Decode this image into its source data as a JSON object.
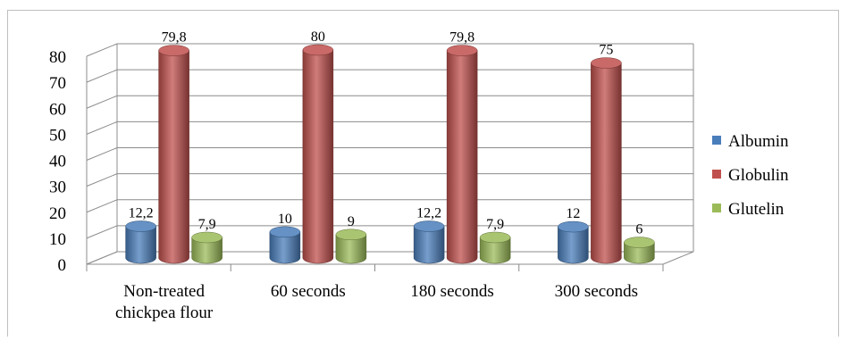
{
  "chart_data": {
    "type": "bar",
    "categories": [
      [
        "Non-treated",
        "chickpea flour"
      ],
      [
        "60 seconds"
      ],
      [
        "180 seconds"
      ],
      [
        "300 seconds"
      ]
    ],
    "series": [
      {
        "name": "Albumin",
        "color": "#4a7ebb",
        "values": [
          12.2,
          10,
          12.2,
          12
        ],
        "labels": [
          "12,2",
          "10",
          "12,2",
          "12"
        ]
      },
      {
        "name": "Globulin",
        "color": "#c0504d",
        "values": [
          79.8,
          80,
          79.8,
          75
        ],
        "labels": [
          "79,8",
          "80",
          "79,8",
          "75"
        ]
      },
      {
        "name": "Glutelin",
        "color": "#9bbb59",
        "values": [
          7.9,
          9,
          7.9,
          6
        ],
        "labels": [
          "7,9",
          "9",
          "7,9",
          "6"
        ]
      }
    ],
    "yticks": [
      0,
      10,
      20,
      30,
      40,
      50,
      60,
      70,
      80
    ],
    "ylim": [
      0,
      80
    ],
    "grid": true,
    "legend_position": "right",
    "three_d": true
  }
}
